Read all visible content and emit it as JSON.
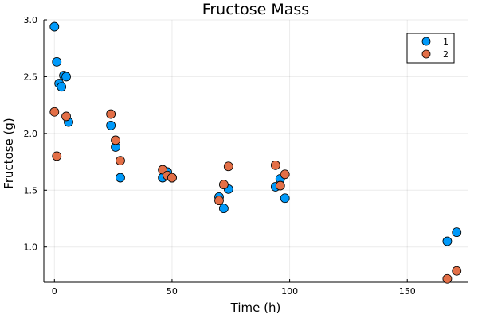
{
  "chart_data": {
    "type": "scatter",
    "title": "Fructose Mass",
    "xlabel": "Time (h)",
    "ylabel": "Fructose (g)",
    "xlim": [
      -4.5,
      176
    ],
    "ylim": [
      0.69,
      3.0
    ],
    "xticks": [
      0,
      50,
      100,
      150
    ],
    "xtick_labels": [
      "0",
      "50",
      "100",
      "150"
    ],
    "yticks": [
      1.0,
      1.5,
      2.0,
      2.5,
      3.0
    ],
    "ytick_labels": [
      "1.0",
      "1.5",
      "2.0",
      "2.5",
      "3.0"
    ],
    "grid": true,
    "legend_position": "top-right",
    "series": [
      {
        "name": "1",
        "color": "#009AFA",
        "points": [
          [
            0,
            2.94
          ],
          [
            1,
            2.63
          ],
          [
            2,
            2.44
          ],
          [
            3,
            2.41
          ],
          [
            4,
            2.51
          ],
          [
            5,
            2.5
          ],
          [
            6,
            2.1
          ],
          [
            24,
            2.07
          ],
          [
            26,
            1.88
          ],
          [
            28,
            1.61
          ],
          [
            46,
            1.61
          ],
          [
            48,
            1.66
          ],
          [
            50,
            1.61
          ],
          [
            70,
            1.44
          ],
          [
            72,
            1.34
          ],
          [
            74,
            1.51
          ],
          [
            94,
            1.53
          ],
          [
            96,
            1.6
          ],
          [
            98,
            1.43
          ],
          [
            167,
            1.05
          ],
          [
            171,
            1.13
          ]
        ]
      },
      {
        "name": "2",
        "color": "#E36F47",
        "points": [
          [
            0,
            2.19
          ],
          [
            1,
            1.8
          ],
          [
            5,
            2.15
          ],
          [
            24,
            2.17
          ],
          [
            26,
            1.94
          ],
          [
            28,
            1.76
          ],
          [
            46,
            1.68
          ],
          [
            48,
            1.63
          ],
          [
            50,
            1.61
          ],
          [
            70,
            1.41
          ],
          [
            72,
            1.55
          ],
          [
            74,
            1.71
          ],
          [
            94,
            1.72
          ],
          [
            96,
            1.54
          ],
          [
            98,
            1.64
          ],
          [
            167,
            0.72
          ],
          [
            171,
            0.79
          ]
        ]
      }
    ]
  }
}
